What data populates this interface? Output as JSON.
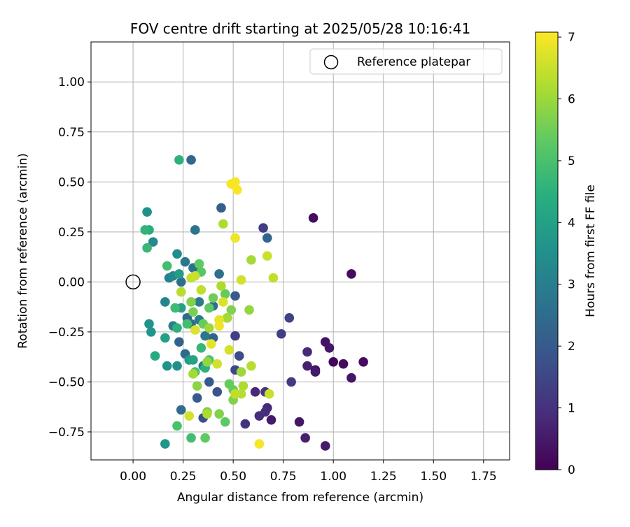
{
  "chart_data": {
    "type": "scatter",
    "title": "FOV centre drift starting at 2025/05/28 10:16:41",
    "xlabel": "Angular distance from reference (arcmin)",
    "ylabel": "Rotation from reference (arcmin)",
    "xlim": [
      -0.21,
      1.88
    ],
    "ylim": [
      -0.89,
      1.2
    ],
    "x_ticks": [
      0.0,
      0.25,
      0.5,
      0.75,
      1.0,
      1.25,
      1.5,
      1.75
    ],
    "x_tick_labels": [
      "0.00",
      "0.25",
      "0.50",
      "0.75",
      "1.00",
      "1.25",
      "1.50",
      "1.75"
    ],
    "y_ticks": [
      -0.75,
      -0.5,
      -0.25,
      0.0,
      0.25,
      0.5,
      0.75,
      1.0
    ],
    "y_tick_labels": [
      "−0.75",
      "−0.50",
      "−0.25",
      "0.00",
      "0.25",
      "0.50",
      "0.75",
      "1.00"
    ],
    "grid": true,
    "legend": {
      "placement": "top-right",
      "entries": [
        {
          "label": "Reference platepar",
          "marker": "open-circle"
        }
      ]
    },
    "reference_point": {
      "x": 0.0,
      "y": 0.0
    },
    "colorbar": {
      "label": "Hours from first FF file",
      "colormap": "viridis",
      "range": [
        0,
        7.08
      ],
      "ticks": [
        0,
        1,
        2,
        3,
        4,
        5,
        6,
        7
      ],
      "tick_labels": [
        "0",
        "1",
        "2",
        "3",
        "4",
        "5",
        "6",
        "7"
      ]
    },
    "points": [
      {
        "x": 0.9,
        "y": 0.32,
        "t": 0.2
      },
      {
        "x": 1.09,
        "y": 0.04,
        "t": 0.2
      },
      {
        "x": 0.96,
        "y": -0.3,
        "t": 0.3
      },
      {
        "x": 0.98,
        "y": -0.33,
        "t": 0.4
      },
      {
        "x": 1.0,
        "y": -0.4,
        "t": 0.1
      },
      {
        "x": 1.05,
        "y": -0.41,
        "t": 0.2
      },
      {
        "x": 1.15,
        "y": -0.4,
        "t": 0.2
      },
      {
        "x": 1.09,
        "y": -0.48,
        "t": 0.4
      },
      {
        "x": 0.91,
        "y": -0.44,
        "t": 0.3
      },
      {
        "x": 0.91,
        "y": -0.45,
        "t": 0.5
      },
      {
        "x": 0.87,
        "y": -0.42,
        "t": 0.6
      },
      {
        "x": 0.87,
        "y": -0.35,
        "t": 0.8
      },
      {
        "x": 0.83,
        "y": -0.7,
        "t": 0.4
      },
      {
        "x": 0.86,
        "y": -0.78,
        "t": 0.6
      },
      {
        "x": 0.96,
        "y": -0.82,
        "t": 0.5
      },
      {
        "x": 0.69,
        "y": -0.69,
        "t": 0.5
      },
      {
        "x": 0.67,
        "y": -0.63,
        "t": 0.8
      },
      {
        "x": 0.66,
        "y": -0.65,
        "t": 0.9
      },
      {
        "x": 0.63,
        "y": -0.67,
        "t": 0.9
      },
      {
        "x": 0.61,
        "y": -0.55,
        "t": 0.8
      },
      {
        "x": 0.66,
        "y": -0.55,
        "t": 1.1
      },
      {
        "x": 0.56,
        "y": -0.71,
        "t": 1.0
      },
      {
        "x": 0.79,
        "y": -0.5,
        "t": 1.2
      },
      {
        "x": 0.74,
        "y": -0.26,
        "t": 1.3
      },
      {
        "x": 0.78,
        "y": -0.18,
        "t": 1.4
      },
      {
        "x": 0.65,
        "y": 0.27,
        "t": 1.3
      },
      {
        "x": 0.67,
        "y": 0.22,
        "t": 2.3
      },
      {
        "x": 0.51,
        "y": -0.27,
        "t": 1.3
      },
      {
        "x": 0.51,
        "y": -0.44,
        "t": 1.5
      },
      {
        "x": 0.53,
        "y": -0.37,
        "t": 1.6
      },
      {
        "x": 0.51,
        "y": -0.07,
        "t": 2.0
      },
      {
        "x": 0.47,
        "y": -0.18,
        "t": 2.0
      },
      {
        "x": 0.44,
        "y": 0.37,
        "t": 2.1
      },
      {
        "x": 0.43,
        "y": 0.04,
        "t": 2.6
      },
      {
        "x": 0.4,
        "y": -0.12,
        "t": 2.6
      },
      {
        "x": 0.4,
        "y": -0.28,
        "t": 2.2
      },
      {
        "x": 0.42,
        "y": -0.55,
        "t": 1.8
      },
      {
        "x": 0.38,
        "y": -0.5,
        "t": 2.0
      },
      {
        "x": 0.35,
        "y": -0.68,
        "t": 1.7
      },
      {
        "x": 0.32,
        "y": -0.58,
        "t": 2.0
      },
      {
        "x": 0.29,
        "y": 0.61,
        "t": 2.4
      },
      {
        "x": 0.31,
        "y": 0.26,
        "t": 2.7
      },
      {
        "x": 0.3,
        "y": 0.07,
        "t": 2.6
      },
      {
        "x": 0.26,
        "y": 0.1,
        "t": 2.8
      },
      {
        "x": 0.24,
        "y": 0.0,
        "t": 2.6
      },
      {
        "x": 0.27,
        "y": -0.18,
        "t": 2.4
      },
      {
        "x": 0.29,
        "y": -0.21,
        "t": 2.6
      },
      {
        "x": 0.23,
        "y": -0.3,
        "t": 2.2
      },
      {
        "x": 0.26,
        "y": -0.36,
        "t": 2.4
      },
      {
        "x": 0.24,
        "y": -0.64,
        "t": 2.5
      },
      {
        "x": 0.36,
        "y": -0.27,
        "t": 2.8
      },
      {
        "x": 0.33,
        "y": -0.19,
        "t": 2.9
      },
      {
        "x": 0.35,
        "y": -0.42,
        "t": 3.0
      },
      {
        "x": 0.33,
        "y": -0.1,
        "t": 2.9
      },
      {
        "x": 0.2,
        "y": -0.22,
        "t": 3.0
      },
      {
        "x": 0.18,
        "y": 0.02,
        "t": 3.1
      },
      {
        "x": 0.16,
        "y": -0.1,
        "t": 3.2
      },
      {
        "x": 0.2,
        "y": 0.03,
        "t": 3.3
      },
      {
        "x": 0.22,
        "y": 0.14,
        "t": 3.4
      },
      {
        "x": 0.1,
        "y": 0.2,
        "t": 3.3
      },
      {
        "x": 0.07,
        "y": 0.35,
        "t": 3.5
      },
      {
        "x": 0.08,
        "y": -0.21,
        "t": 3.6
      },
      {
        "x": 0.09,
        "y": -0.25,
        "t": 3.7
      },
      {
        "x": 0.17,
        "y": -0.42,
        "t": 3.6
      },
      {
        "x": 0.22,
        "y": -0.42,
        "t": 3.5
      },
      {
        "x": 0.28,
        "y": -0.39,
        "t": 3.8
      },
      {
        "x": 0.3,
        "y": -0.39,
        "t": 4.1
      },
      {
        "x": 0.23,
        "y": 0.04,
        "t": 3.9
      },
      {
        "x": 0.24,
        "y": -0.13,
        "t": 4.0
      },
      {
        "x": 0.22,
        "y": -0.23,
        "t": 4.5
      },
      {
        "x": 0.16,
        "y": -0.28,
        "t": 4.0
      },
      {
        "x": 0.11,
        "y": -0.37,
        "t": 4.3
      },
      {
        "x": 0.16,
        "y": -0.81,
        "t": 3.7
      },
      {
        "x": 0.23,
        "y": 0.61,
        "t": 4.5
      },
      {
        "x": 0.08,
        "y": 0.26,
        "t": 4.4
      },
      {
        "x": 0.06,
        "y": 0.26,
        "t": 4.6
      },
      {
        "x": 0.07,
        "y": 0.17,
        "t": 4.7
      },
      {
        "x": 0.17,
        "y": 0.08,
        "t": 4.9
      },
      {
        "x": 0.21,
        "y": -0.13,
        "t": 4.8
      },
      {
        "x": 0.27,
        "y": -0.21,
        "t": 4.9
      },
      {
        "x": 0.34,
        "y": -0.33,
        "t": 4.7
      },
      {
        "x": 0.36,
        "y": -0.43,
        "t": 4.5
      },
      {
        "x": 0.38,
        "y": -0.39,
        "t": 5.1
      },
      {
        "x": 0.31,
        "y": -0.45,
        "t": 5.0
      },
      {
        "x": 0.34,
        "y": 0.05,
        "t": 5.2
      },
      {
        "x": 0.33,
        "y": 0.09,
        "t": 5.3
      },
      {
        "x": 0.22,
        "y": -0.72,
        "t": 5.0
      },
      {
        "x": 0.29,
        "y": -0.78,
        "t": 4.9
      },
      {
        "x": 0.36,
        "y": -0.78,
        "t": 5.3
      },
      {
        "x": 0.37,
        "y": -0.65,
        "t": 5.6
      },
      {
        "x": 0.46,
        "y": -0.7,
        "t": 5.3
      },
      {
        "x": 0.48,
        "y": -0.51,
        "t": 5.4
      },
      {
        "x": 0.5,
        "y": -0.54,
        "t": 5.4
      },
      {
        "x": 0.5,
        "y": -0.59,
        "t": 5.7
      },
      {
        "x": 0.43,
        "y": -0.66,
        "t": 5.7
      },
      {
        "x": 0.46,
        "y": -0.06,
        "t": 5.4
      },
      {
        "x": 0.4,
        "y": -0.08,
        "t": 5.5
      },
      {
        "x": 0.38,
        "y": -0.13,
        "t": 5.3
      },
      {
        "x": 0.35,
        "y": -0.21,
        "t": 5.4
      },
      {
        "x": 0.3,
        "y": -0.15,
        "t": 5.6
      },
      {
        "x": 0.29,
        "y": -0.1,
        "t": 5.7
      },
      {
        "x": 0.49,
        "y": -0.14,
        "t": 5.7
      },
      {
        "x": 0.58,
        "y": -0.14,
        "t": 5.9
      },
      {
        "x": 0.59,
        "y": 0.11,
        "t": 6.1
      },
      {
        "x": 0.45,
        "y": 0.29,
        "t": 6.2
      },
      {
        "x": 0.3,
        "y": -0.46,
        "t": 6.1
      },
      {
        "x": 0.32,
        "y": -0.52,
        "t": 5.8
      },
      {
        "x": 0.37,
        "y": -0.4,
        "t": 5.9
      },
      {
        "x": 0.38,
        "y": -0.23,
        "t": 6.0
      },
      {
        "x": 0.47,
        "y": -0.18,
        "t": 6.1
      },
      {
        "x": 0.44,
        "y": -0.02,
        "t": 6.2
      },
      {
        "x": 0.54,
        "y": -0.45,
        "t": 6.0
      },
      {
        "x": 0.55,
        "y": -0.52,
        "t": 6.2
      },
      {
        "x": 0.54,
        "y": -0.56,
        "t": 6.3
      },
      {
        "x": 0.51,
        "y": -0.56,
        "t": 6.4
      },
      {
        "x": 0.24,
        "y": -0.05,
        "t": 6.3
      },
      {
        "x": 0.29,
        "y": 0.02,
        "t": 6.4
      },
      {
        "x": 0.31,
        "y": 0.03,
        "t": 6.5
      },
      {
        "x": 0.34,
        "y": -0.04,
        "t": 6.4
      },
      {
        "x": 0.42,
        "y": -0.41,
        "t": 6.6
      },
      {
        "x": 0.45,
        "y": -0.1,
        "t": 6.7
      },
      {
        "x": 0.43,
        "y": -0.19,
        "t": 6.8
      },
      {
        "x": 0.43,
        "y": -0.22,
        "t": 6.9
      },
      {
        "x": 0.39,
        "y": -0.31,
        "t": 6.8
      },
      {
        "x": 0.48,
        "y": -0.34,
        "t": 6.6
      },
      {
        "x": 0.54,
        "y": 0.01,
        "t": 6.6
      },
      {
        "x": 0.59,
        "y": -0.42,
        "t": 6.3
      },
      {
        "x": 0.67,
        "y": 0.13,
        "t": 6.5
      },
      {
        "x": 0.7,
        "y": 0.02,
        "t": 6.4
      },
      {
        "x": 0.68,
        "y": -0.56,
        "t": 6.5
      },
      {
        "x": 0.28,
        "y": -0.67,
        "t": 6.6
      },
      {
        "x": 0.37,
        "y": -0.66,
        "t": 6.2
      },
      {
        "x": 0.31,
        "y": -0.24,
        "t": 6.7
      },
      {
        "x": 0.51,
        "y": 0.22,
        "t": 6.9
      },
      {
        "x": 0.49,
        "y": 0.49,
        "t": 7.0
      },
      {
        "x": 0.51,
        "y": 0.5,
        "t": 7.0
      },
      {
        "x": 0.52,
        "y": 0.46,
        "t": 7.0
      },
      {
        "x": 0.63,
        "y": -0.81,
        "t": 7.0
      }
    ]
  }
}
